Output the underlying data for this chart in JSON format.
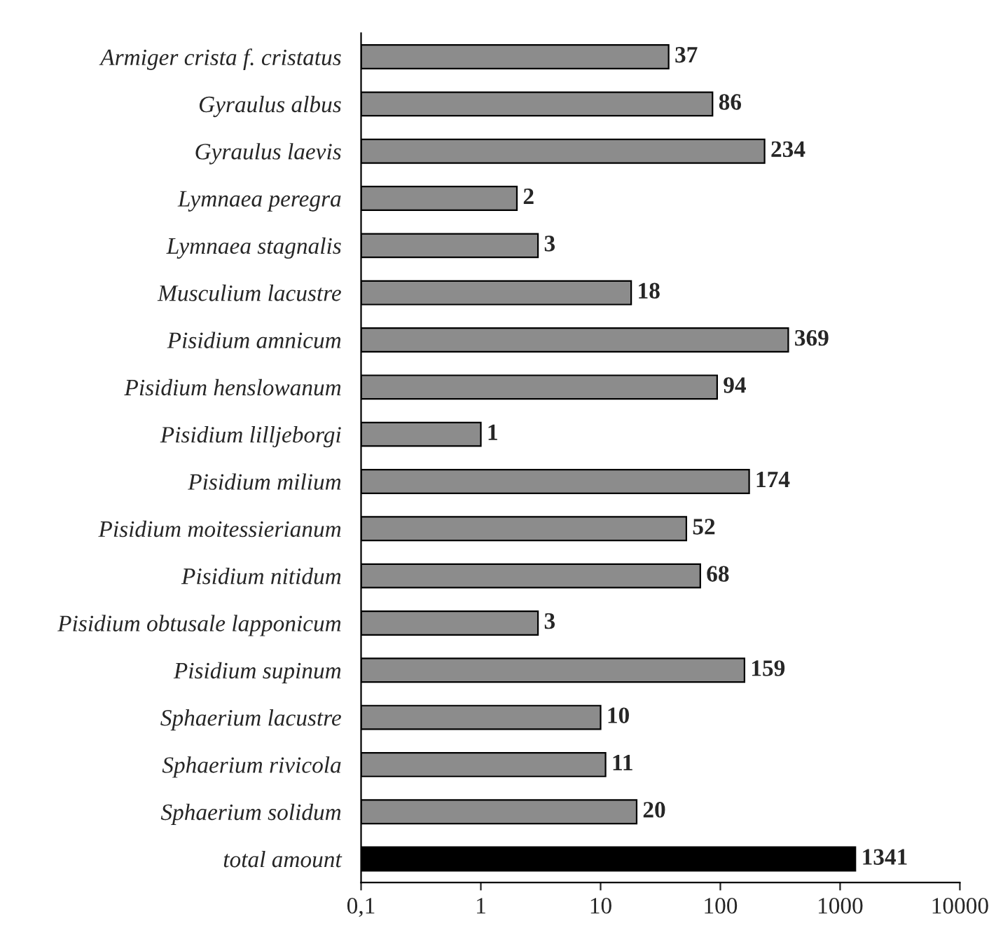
{
  "chart_data": {
    "type": "bar",
    "orientation": "horizontal",
    "log": "x",
    "categories": [
      "Armiger crista f. cristatus",
      "Gyraulus albus",
      "Gyraulus laevis",
      "Lymnaea peregra",
      "Lymnaea stagnalis",
      "Musculium lacustre",
      "Pisidium amnicum",
      "Pisidium henslowanum",
      "Pisidium lilljeborgi",
      "Pisidium milium",
      "Pisidium moitessierianum",
      "Pisidium nitidum",
      "Pisidium obtusale lapponicum",
      "Pisidium supinum",
      "Sphaerium lacustre",
      "Sphaerium rivicola",
      "Sphaerium solidum",
      "total amount"
    ],
    "values": [
      37,
      86,
      234,
      2,
      3,
      18,
      369,
      94,
      1,
      174,
      52,
      68,
      3,
      159,
      10,
      11,
      20,
      1341
    ],
    "colors": [
      "#8c8c8c",
      "#8c8c8c",
      "#8c8c8c",
      "#8c8c8c",
      "#8c8c8c",
      "#8c8c8c",
      "#8c8c8c",
      "#8c8c8c",
      "#8c8c8c",
      "#8c8c8c",
      "#8c8c8c",
      "#8c8c8c",
      "#8c8c8c",
      "#8c8c8c",
      "#8c8c8c",
      "#8c8c8c",
      "#8c8c8c",
      "#000000"
    ],
    "xlim": [
      0.1,
      10000
    ],
    "xticks": [
      {
        "value": 0.1,
        "label": "0,1"
      },
      1,
      10,
      100,
      1000,
      10000
    ],
    "data_labels": true,
    "grid": false,
    "legend": false
  }
}
